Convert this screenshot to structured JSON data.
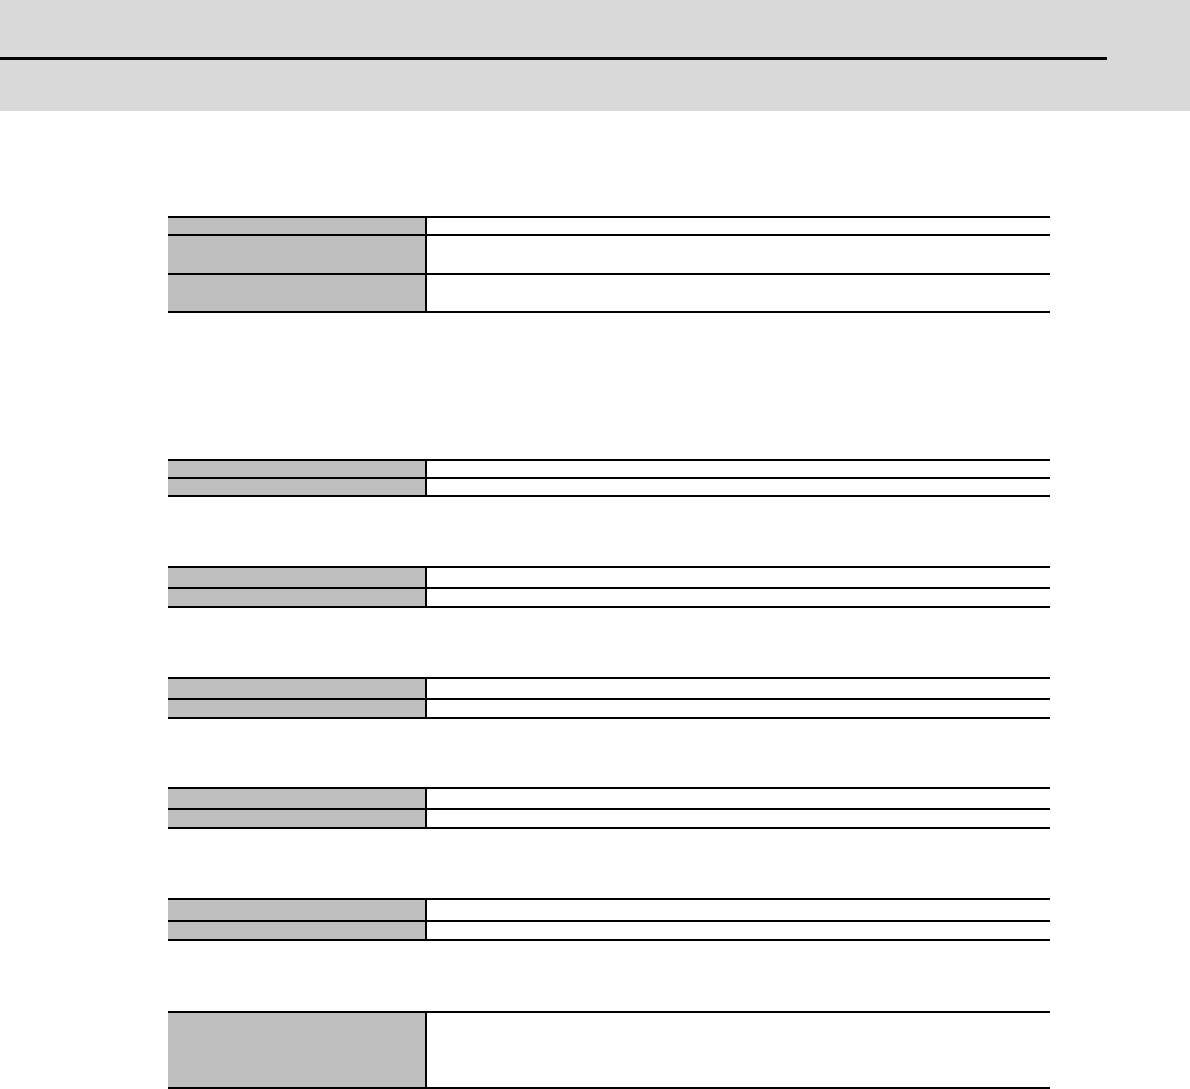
{
  "colors": {
    "header_band": "#d9d9d9",
    "label_cell": "#bfbfbf",
    "rule": "#000000"
  },
  "tables": [
    {
      "rows": [
        {
          "label": "",
          "value": ""
        },
        {
          "label": "",
          "value": ""
        },
        {
          "label": "",
          "value": ""
        }
      ]
    },
    {
      "rows": [
        {
          "label": "",
          "value": ""
        },
        {
          "label": "",
          "value": ""
        }
      ]
    },
    {
      "rows": [
        {
          "label": "",
          "value": ""
        },
        {
          "label": "",
          "value": ""
        }
      ]
    },
    {
      "rows": [
        {
          "label": "",
          "value": ""
        },
        {
          "label": "",
          "value": ""
        }
      ]
    },
    {
      "rows": [
        {
          "label": "",
          "value": ""
        },
        {
          "label": "",
          "value": ""
        }
      ]
    },
    {
      "rows": [
        {
          "label": "",
          "value": ""
        },
        {
          "label": "",
          "value": ""
        }
      ]
    },
    {
      "rows": [
        {
          "label": "",
          "value": ""
        }
      ]
    }
  ]
}
